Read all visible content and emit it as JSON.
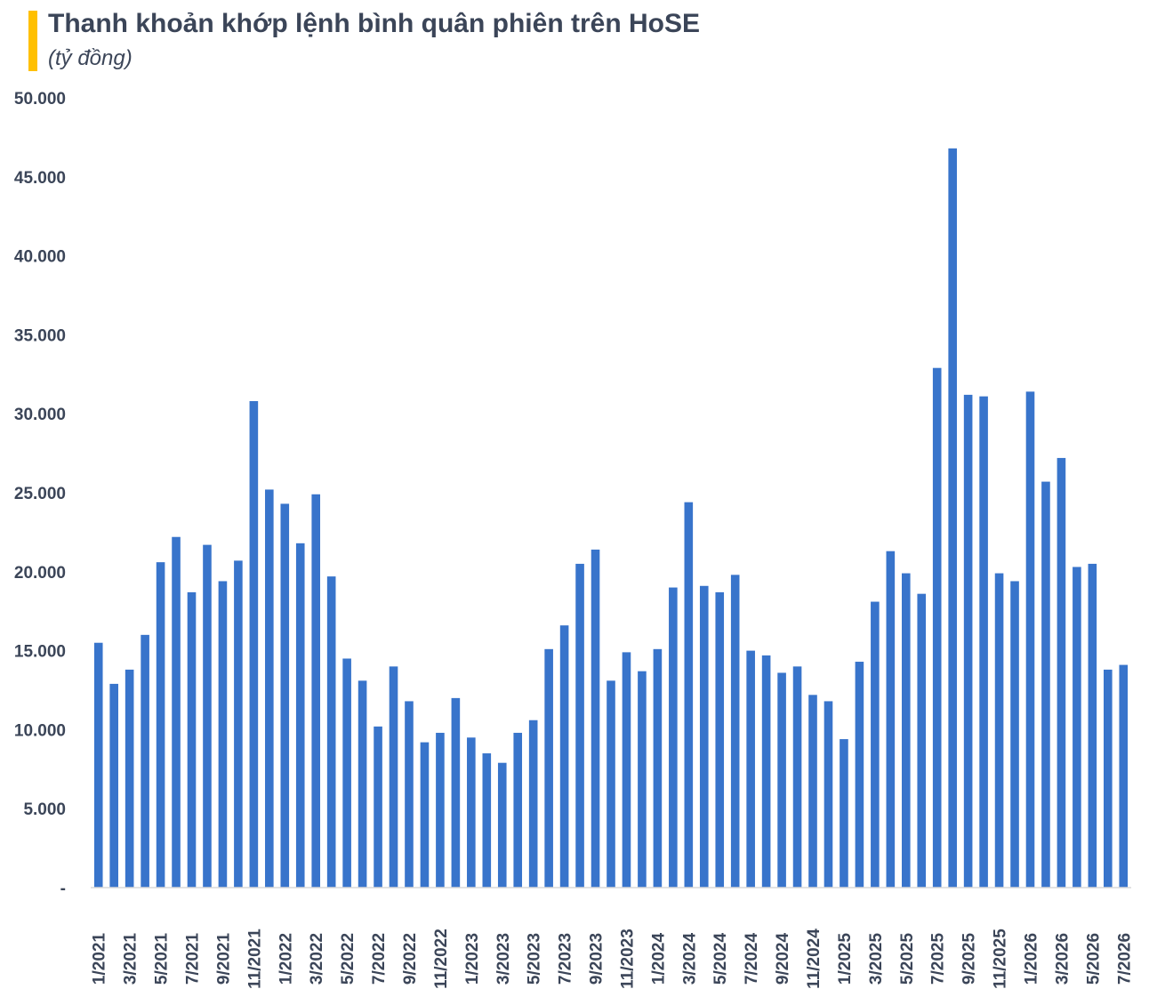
{
  "title": "Thanh khoản khớp lệnh bình quân phiên trên HoSE",
  "subtitle": "(tỷ đồng)",
  "colors": {
    "accent": "#FFC000",
    "bar": "#3874CB",
    "text": "#3b4558",
    "axis": "#d9d9d9"
  },
  "chart_data": {
    "type": "bar",
    "title": "Thanh khoản khớp lệnh bình quân phiên trên HoSE",
    "subtitle": "(tỷ đồng)",
    "xlabel": "",
    "ylabel": "",
    "ylim": [
      0,
      50000
    ],
    "yticks": [
      0,
      5000,
      10000,
      15000,
      20000,
      25000,
      30000,
      35000,
      40000,
      45000,
      50000
    ],
    "ytick_labels": [
      "-",
      "5.000",
      "10.000",
      "15.000",
      "20.000",
      "25.000",
      "30.000",
      "35.000",
      "40.000",
      "45.000",
      "50.000"
    ],
    "grid": false,
    "x_tick_labels": [
      "1/2021",
      "3/2021",
      "5/2021",
      "7/2021",
      "9/2021",
      "11/2021",
      "1/2022",
      "3/2022",
      "5/2022",
      "7/2022",
      "9/2022",
      "11/2022",
      "1/2023",
      "3/2023",
      "5/2023",
      "7/2023",
      "9/2023",
      "11/2023",
      "1/2024",
      "3/2024",
      "5/2024",
      "7/2024",
      "9/2024",
      "11/2024",
      "1/2025",
      "3/2025",
      "5/2025",
      "7/2025",
      "9/2025",
      "11/2025",
      "1/2026",
      "3/2026",
      "5/2026",
      "7/2026"
    ],
    "categories": [
      "1/2021",
      "2/2021",
      "3/2021",
      "4/2021",
      "5/2021",
      "6/2021",
      "7/2021",
      "8/2021",
      "9/2021",
      "10/2021",
      "11/2021",
      "12/2021",
      "1/2022",
      "2/2022",
      "3/2022",
      "4/2022",
      "5/2022",
      "6/2022",
      "7/2022",
      "8/2022",
      "9/2022",
      "10/2022",
      "11/2022",
      "12/2022",
      "1/2023",
      "2/2023",
      "3/2023",
      "4/2023",
      "5/2023",
      "6/2023",
      "7/2023",
      "8/2023",
      "9/2023",
      "10/2023",
      "11/2023",
      "12/2023",
      "1/2024",
      "2/2024",
      "3/2024",
      "4/2024",
      "5/2024",
      "6/2024",
      "7/2024",
      "8/2024",
      "9/2024",
      "10/2024",
      "11/2024",
      "12/2024",
      "1/2025",
      "2/2025",
      "3/2025",
      "4/2025",
      "5/2025",
      "6/2025",
      "7/2025",
      "8/2025",
      "9/2025",
      "10/2025",
      "11/2025",
      "12/2025",
      "1/2026",
      "2/2026",
      "3/2026",
      "4/2026",
      "5/2026",
      "6/2026",
      "7/2026"
    ],
    "values": [
      15500,
      12900,
      13800,
      16000,
      20600,
      22200,
      18700,
      21700,
      19400,
      20700,
      30800,
      25200,
      24300,
      21800,
      24900,
      19700,
      14500,
      13100,
      10200,
      14000,
      11800,
      9200,
      9800,
      12000,
      9500,
      8500,
      7900,
      9800,
      10600,
      15100,
      16600,
      20500,
      21400,
      13100,
      14900,
      13700,
      15100,
      19000,
      24400,
      19100,
      18700,
      19800,
      15000,
      14700,
      13600,
      14000,
      12200,
      11800,
      9400,
      14300,
      18100,
      21300,
      19900,
      18600,
      32900,
      46800,
      31200,
      31100,
      19900,
      19400,
      31400,
      25700,
      27200,
      20300,
      20500,
      13800,
      14100
    ]
  }
}
